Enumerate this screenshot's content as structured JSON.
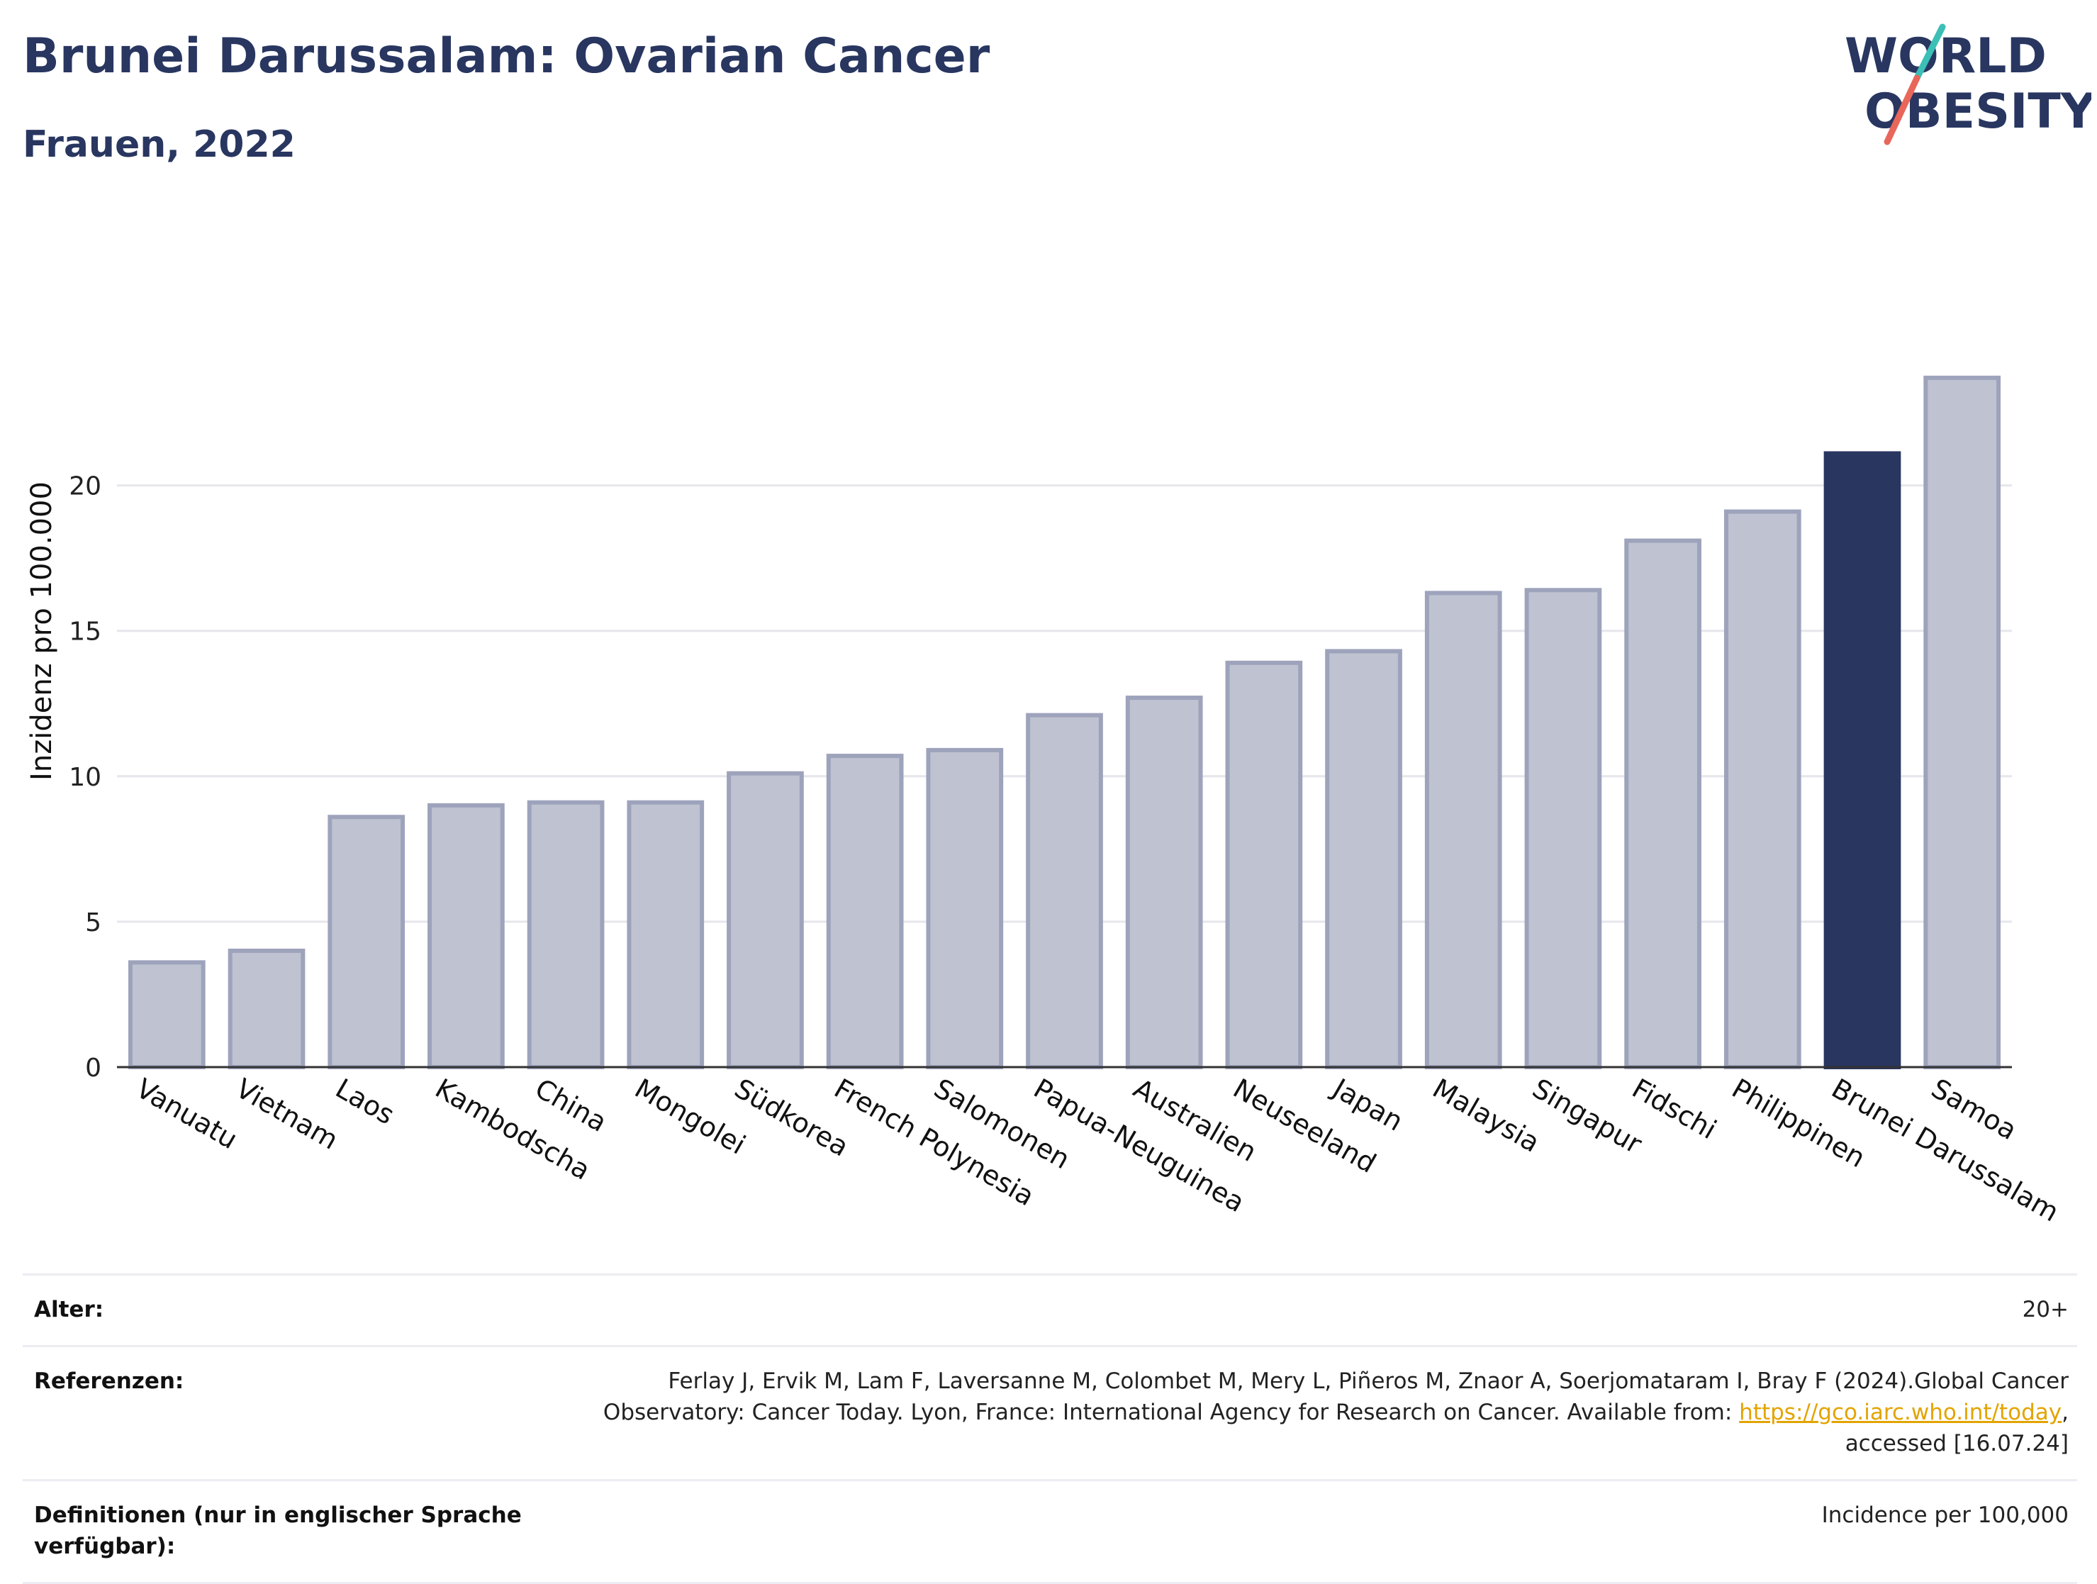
{
  "header": {
    "title": "Brunei Darussalam: Ovarian Cancer",
    "subtitle": "Frauen, 2022",
    "logo_line1": "WORLD",
    "logo_line2": "OBESITY"
  },
  "colors": {
    "title": "#283660",
    "bar": "#bfc2d0",
    "bar_stroke": "#9ea3bc",
    "highlight": "#283660",
    "gridline": "#e6e6ec",
    "link": "#e3a400",
    "logo_teal": "#3bbfb6",
    "logo_red": "#e8675a"
  },
  "chart_data": {
    "type": "bar",
    "ylabel": "Inzidenz pro 100.000",
    "xlabel": "",
    "ylim": [
      0,
      24.5
    ],
    "yticks": [
      0,
      5,
      10,
      15,
      20
    ],
    "grid": true,
    "highlight": "Brunei Darussalam",
    "categories": [
      "Vanuatu",
      "Vietnam",
      "Laos",
      "Kambodscha",
      "China",
      "Mongolei",
      "Südkorea",
      "French Polynesia",
      "Salomonen",
      "Papua-Neuguinea",
      "Australien",
      "Neuseeland",
      "Japan",
      "Malaysia",
      "Singapur",
      "Fidschi",
      "Philippinen",
      "Brunei Darussalam",
      "Samoa"
    ],
    "values": [
      3.6,
      4.0,
      8.6,
      9.0,
      9.1,
      9.1,
      10.1,
      10.7,
      10.9,
      12.1,
      12.7,
      13.9,
      14.3,
      16.3,
      16.4,
      18.1,
      19.1,
      21.1,
      23.7
    ]
  },
  "info": {
    "age_label": "Alter:",
    "age_value": "20+",
    "ref_label": "Referenzen:",
    "ref_text_1": "Ferlay J, Ervik M, Lam F, Laversanne M, Colombet M, Mery L, Piñeros M, Znaor A, Soerjomataram I, Bray F (2024).Global Cancer Observatory: Cancer Today. Lyon, France: International Agency for Research on Cancer. Available from: ",
    "ref_link": "https://gco.iarc.who.int/today",
    "ref_text_2": ", accessed [16.07.24]",
    "def_label": "Definitionen (nur in englischer Sprache verfügbar):",
    "def_value": "Incidence per 100,000"
  }
}
